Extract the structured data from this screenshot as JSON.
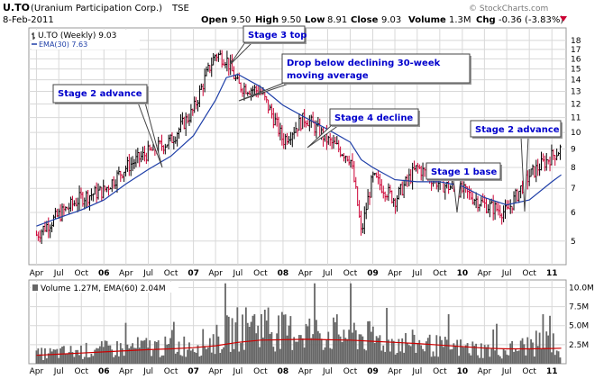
{
  "header": {
    "symbol": "U.TO",
    "company": "(Uranium Participation Corp.)",
    "exchange": "TSE",
    "date": "8-Feb-2011",
    "open_label": "Open",
    "open": "9.50",
    "high_label": "High",
    "high": "9.50",
    "low_label": "Low",
    "low": "8.91",
    "close_label": "Close",
    "close": "9.03",
    "volume_label": "Volume",
    "volume": "1.3M",
    "chg_label": "Chg",
    "chg": "-0.36 (-3.83%)",
    "watermark": "© StockCharts.com"
  },
  "colors": {
    "up": "#000000",
    "down": "#cc0033",
    "ema": "#1f3fa8",
    "vol_ema": "#cc0000",
    "volume": "#666666",
    "grid": "#d8d8d8",
    "annotation_text": "#0000cc",
    "chg_arrow": "#cc0033"
  },
  "chart_data": [
    {
      "type": "line",
      "title": "U.TO (Weekly) 9.03",
      "legend": [
        "U.TO (Weekly) 9.03",
        "EMA(30) 7.63"
      ],
      "scale": "log",
      "ylim": [
        4.3,
        19.5
      ],
      "y_ticks": [
        5,
        6,
        7,
        8,
        9,
        10,
        11,
        12,
        13,
        14,
        15,
        16,
        17,
        18
      ],
      "x_ticks": [
        "Apr",
        "Jul",
        "Oct",
        "06",
        "Apr",
        "Jul",
        "Oct",
        "07",
        "Apr",
        "Jul",
        "Oct",
        "08",
        "Apr",
        "Jul",
        "Oct",
        "09",
        "Apr",
        "Jul",
        "Oct",
        "10",
        "Apr",
        "Jul",
        "Oct",
        "11"
      ],
      "x": [
        "2005-04-01",
        "2005-07-01",
        "2005-10-01",
        "2006-01-01",
        "2006-04-01",
        "2006-07-01",
        "2006-10-01",
        "2007-01-01",
        "2007-04-01",
        "2007-05-15",
        "2007-07-01",
        "2007-10-01",
        "2008-01-01",
        "2008-04-01",
        "2008-07-01",
        "2008-10-01",
        "2008-11-15",
        "2009-01-01",
        "2009-04-01",
        "2009-07-01",
        "2009-10-01",
        "2010-01-01",
        "2010-04-01",
        "2010-07-01",
        "2010-10-01",
        "2011-01-01",
        "2011-02-08"
      ],
      "series": [
        {
          "name": "U.TO (Weekly) 9.03",
          "style": "hlc bars",
          "values": [
            5.2,
            5.9,
            6.6,
            6.9,
            8.0,
            8.8,
            9.5,
            11.5,
            16.5,
            16.0,
            13.5,
            13.0,
            9.5,
            11.0,
            9.5,
            8.5,
            5.2,
            7.5,
            6.5,
            8.0,
            7.2,
            6.9,
            6.3,
            6.0,
            7.6,
            8.6,
            9.03
          ]
        },
        {
          "name": "EMA(30) 7.63",
          "style": "line",
          "values": [
            5.5,
            5.8,
            6.1,
            6.5,
            7.2,
            7.9,
            8.6,
            9.8,
            12.3,
            14.2,
            14.5,
            13.4,
            11.9,
            11.0,
            10.2,
            9.4,
            8.4,
            8.0,
            7.4,
            7.3,
            7.3,
            7.1,
            6.6,
            6.3,
            6.5,
            7.3,
            7.63
          ]
        }
      ]
    },
    {
      "type": "bar",
      "title": "Volume 1.27M, EMA(60) 2.04M",
      "legend": [
        "Volume 1.27M, EMA(60) 2.04M"
      ],
      "ylim": [
        0,
        11000000
      ],
      "y_ticks": [
        "2.5M",
        "5.0M",
        "7.5M",
        "10.0M"
      ],
      "y_tick_values": [
        2500000,
        5000000,
        7500000,
        10000000
      ],
      "x": [
        "2005-04-01",
        "2005-07-01",
        "2005-10-01",
        "2006-01-01",
        "2006-04-01",
        "2006-07-01",
        "2006-10-01",
        "2007-01-01",
        "2007-04-01",
        "2007-07-01",
        "2007-10-01",
        "2008-01-01",
        "2008-04-01",
        "2008-07-01",
        "2008-10-01",
        "2009-01-01",
        "2009-04-01",
        "2009-07-01",
        "2009-10-01",
        "2010-01-01",
        "2010-04-01",
        "2010-07-01",
        "2010-10-01",
        "2011-01-01",
        "2011-02-08"
      ],
      "series": [
        {
          "name": "Volume",
          "values": [
            1200000,
            1400000,
            1600000,
            1800000,
            2000000,
            2200000,
            2100000,
            2500000,
            3000000,
            4500000,
            5000000,
            4000000,
            4200000,
            3800000,
            4000000,
            3200000,
            2800000,
            2600000,
            2200000,
            2000000,
            1800000,
            1700000,
            2400000,
            2900000,
            1270000
          ]
        },
        {
          "name": "EMA(60)",
          "values": [
            1100000,
            1250000,
            1400000,
            1550000,
            1700000,
            1850000,
            1950000,
            2100000,
            2350000,
            2800000,
            3100000,
            3150000,
            3200000,
            3150000,
            3100000,
            2950000,
            2800000,
            2650000,
            2450000,
            2250000,
            2050000,
            1950000,
            1950000,
            2000000,
            2040000
          ]
        }
      ]
    }
  ],
  "annotations": [
    {
      "id": "stage2a",
      "text": "Stage 2 advance",
      "target_date": "2006-10-20",
      "target_value": 8.6
    },
    {
      "id": "stage3",
      "text": "Stage 3 top",
      "target_date": "2007-06-10",
      "target_value": 17.0
    },
    {
      "id": "drop",
      "text": "Drop below declining 30-week",
      "text2": "moving average",
      "target_date": "2007-07-10",
      "target_value": 14.7
    },
    {
      "id": "stage4",
      "text": "Stage 4 decline",
      "target_date": "2008-04-05",
      "target_value": 11.5
    },
    {
      "id": "stage1",
      "text": "Stage 1 base",
      "target_date": "2010-01-05",
      "target_value": 7.0
    },
    {
      "id": "stage2b",
      "text": "Stage 2 advance",
      "target_date": "2010-10-10",
      "target_value": 7.6
    }
  ]
}
